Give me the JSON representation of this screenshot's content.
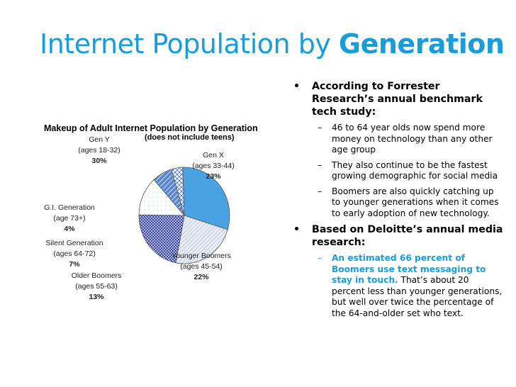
{
  "slide": {
    "title_regular": "Internet Population by",
    "title_bold": "Generation"
  },
  "chart_data": {
    "type": "pie",
    "title": "Makeup of Adult Internet Population by Generation",
    "subtitle": "(does not include teens)",
    "slices": [
      {
        "name": "Gen Y",
        "range": "(ages 18-32)",
        "pct_label": "30%",
        "value": 30,
        "color": "#4aa2e3",
        "pattern": "solid"
      },
      {
        "name": "Gen X",
        "range": "(ages 33-44)",
        "pct_label": "23%",
        "value": 23,
        "color": "#dfe7f3",
        "pattern": "diagonal-light"
      },
      {
        "name": "Younger Boomers",
        "range": "(ages 45-54)",
        "pct_label": "22%",
        "value": 22,
        "color": "#2f3e9a",
        "pattern": "crosshatch-dark"
      },
      {
        "name": "Older Boomers",
        "range": "(ages 55-63)",
        "pct_label": "13%",
        "value": 13,
        "color": "#ffffff",
        "pattern": "sparse-dots"
      },
      {
        "name": "Silent Generation",
        "range": "(ages 64-72)",
        "pct_label": "7%",
        "value": 7,
        "color": "#3f6fc7",
        "pattern": "diagonal-bold"
      },
      {
        "name": "G.I. Generation",
        "range": "(age 73+)",
        "pct_label": "4%",
        "value": 4,
        "color": "#ffffff",
        "pattern": "diamond"
      }
    ]
  },
  "bullets": [
    {
      "text": "According to Forrester Research’s annual benchmark tech study:",
      "sub": [
        "46 to 64 year olds now spend more money on technology than any other age group",
        "They also continue to be the fastest growing demographic for social media",
        "Boomers are also quickly catching up to younger generations when it comes to early adoption of new technology."
      ]
    },
    {
      "text": "Based on Deloitte’s annual media research:",
      "highlight": "An estimated 66 percent of Boomers use text messaging to stay in touch.",
      "rest": " That’s about 20 percent less than younger generations, but well over twice the percentage of the 64-and-older set who text."
    }
  ]
}
